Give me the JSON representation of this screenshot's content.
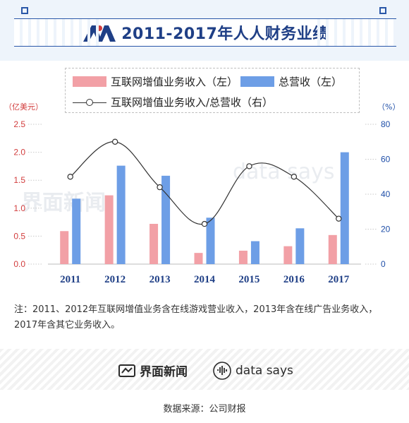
{
  "title": "2011-2017年人人财务业绩",
  "legend": {
    "bar1": "互联网增值业务收入（左）",
    "bar2": "总营收（左）",
    "line": "互联网增值业务收入/总营收（右）"
  },
  "colors": {
    "bar1": "#f2a0a6",
    "bar2": "#6d9ee6",
    "line": "#333333",
    "left_axis": "#d23d3d",
    "right_axis": "#1f4fa8",
    "title": "#1f3f86"
  },
  "axis_units": {
    "left": "（亿美元）",
    "right": "（%）"
  },
  "chart_data": {
    "type": "bar",
    "categories": [
      "2011",
      "2012",
      "2013",
      "2014",
      "2015",
      "2016",
      "2017"
    ],
    "series": [
      {
        "name": "互联网增值业务收入（左）",
        "axis": "left",
        "values": [
          0.59,
          1.23,
          0.72,
          0.2,
          0.24,
          0.32,
          0.52
        ]
      },
      {
        "name": "总营收（左）",
        "axis": "left",
        "values": [
          1.17,
          1.76,
          1.58,
          0.83,
          0.41,
          0.64,
          2.0
        ]
      },
      {
        "name": "互联网增值业务收入/总营收（右）",
        "type": "line",
        "axis": "right",
        "values": [
          50,
          70,
          44,
          23,
          56,
          50,
          26
        ]
      }
    ],
    "left_ticks": [
      "0.0",
      "0.5",
      "1.0",
      "1.5",
      "2.0",
      "2.5"
    ],
    "right_ticks": [
      "0",
      "20",
      "40",
      "60",
      "80"
    ],
    "ylim_left": [
      0,
      2.5
    ],
    "ylim_right": [
      0,
      80
    ],
    "grid": false
  },
  "note": "注：2011、2012年互联网增值业务含在线游戏营业收入，2013年含在线广告业务收入，2017年含其它业务收入。",
  "footer": {
    "brand1": "界面新闻",
    "brand2": "data says",
    "source": "数据来源：公司财报"
  },
  "watermark": {
    "text1": "界面新闻",
    "text2": "data says"
  }
}
